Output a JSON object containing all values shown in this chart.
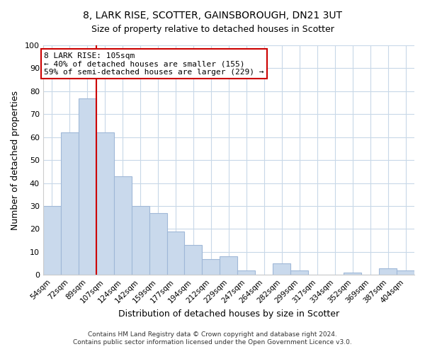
{
  "title": "8, LARK RISE, SCOTTER, GAINSBOROUGH, DN21 3UT",
  "subtitle": "Size of property relative to detached houses in Scotter",
  "xlabel": "Distribution of detached houses by size in Scotter",
  "ylabel": "Number of detached properties",
  "bar_labels": [
    "54sqm",
    "72sqm",
    "89sqm",
    "107sqm",
    "124sqm",
    "142sqm",
    "159sqm",
    "177sqm",
    "194sqm",
    "212sqm",
    "229sqm",
    "247sqm",
    "264sqm",
    "282sqm",
    "299sqm",
    "317sqm",
    "334sqm",
    "352sqm",
    "369sqm",
    "387sqm",
    "404sqm"
  ],
  "bar_values": [
    30,
    62,
    77,
    62,
    43,
    30,
    27,
    19,
    13,
    7,
    8,
    2,
    0,
    5,
    2,
    0,
    0,
    1,
    0,
    3,
    2
  ],
  "bar_color": "#c9d9ec",
  "bar_edge_color": "#a0b8d8",
  "vline_color": "#cc0000",
  "annotation_text": "8 LARK RISE: 105sqm\n← 40% of detached houses are smaller (155)\n59% of semi-detached houses are larger (229) →",
  "annotation_box_color": "#ffffff",
  "annotation_box_edge_color": "#cc0000",
  "ylim": [
    0,
    100
  ],
  "yticks": [
    0,
    10,
    20,
    30,
    40,
    50,
    60,
    70,
    80,
    90,
    100
  ],
  "footer1": "Contains HM Land Registry data © Crown copyright and database right 2024.",
  "footer2": "Contains public sector information licensed under the Open Government Licence v3.0.",
  "background_color": "#ffffff",
  "grid_color": "#c8d8e8"
}
